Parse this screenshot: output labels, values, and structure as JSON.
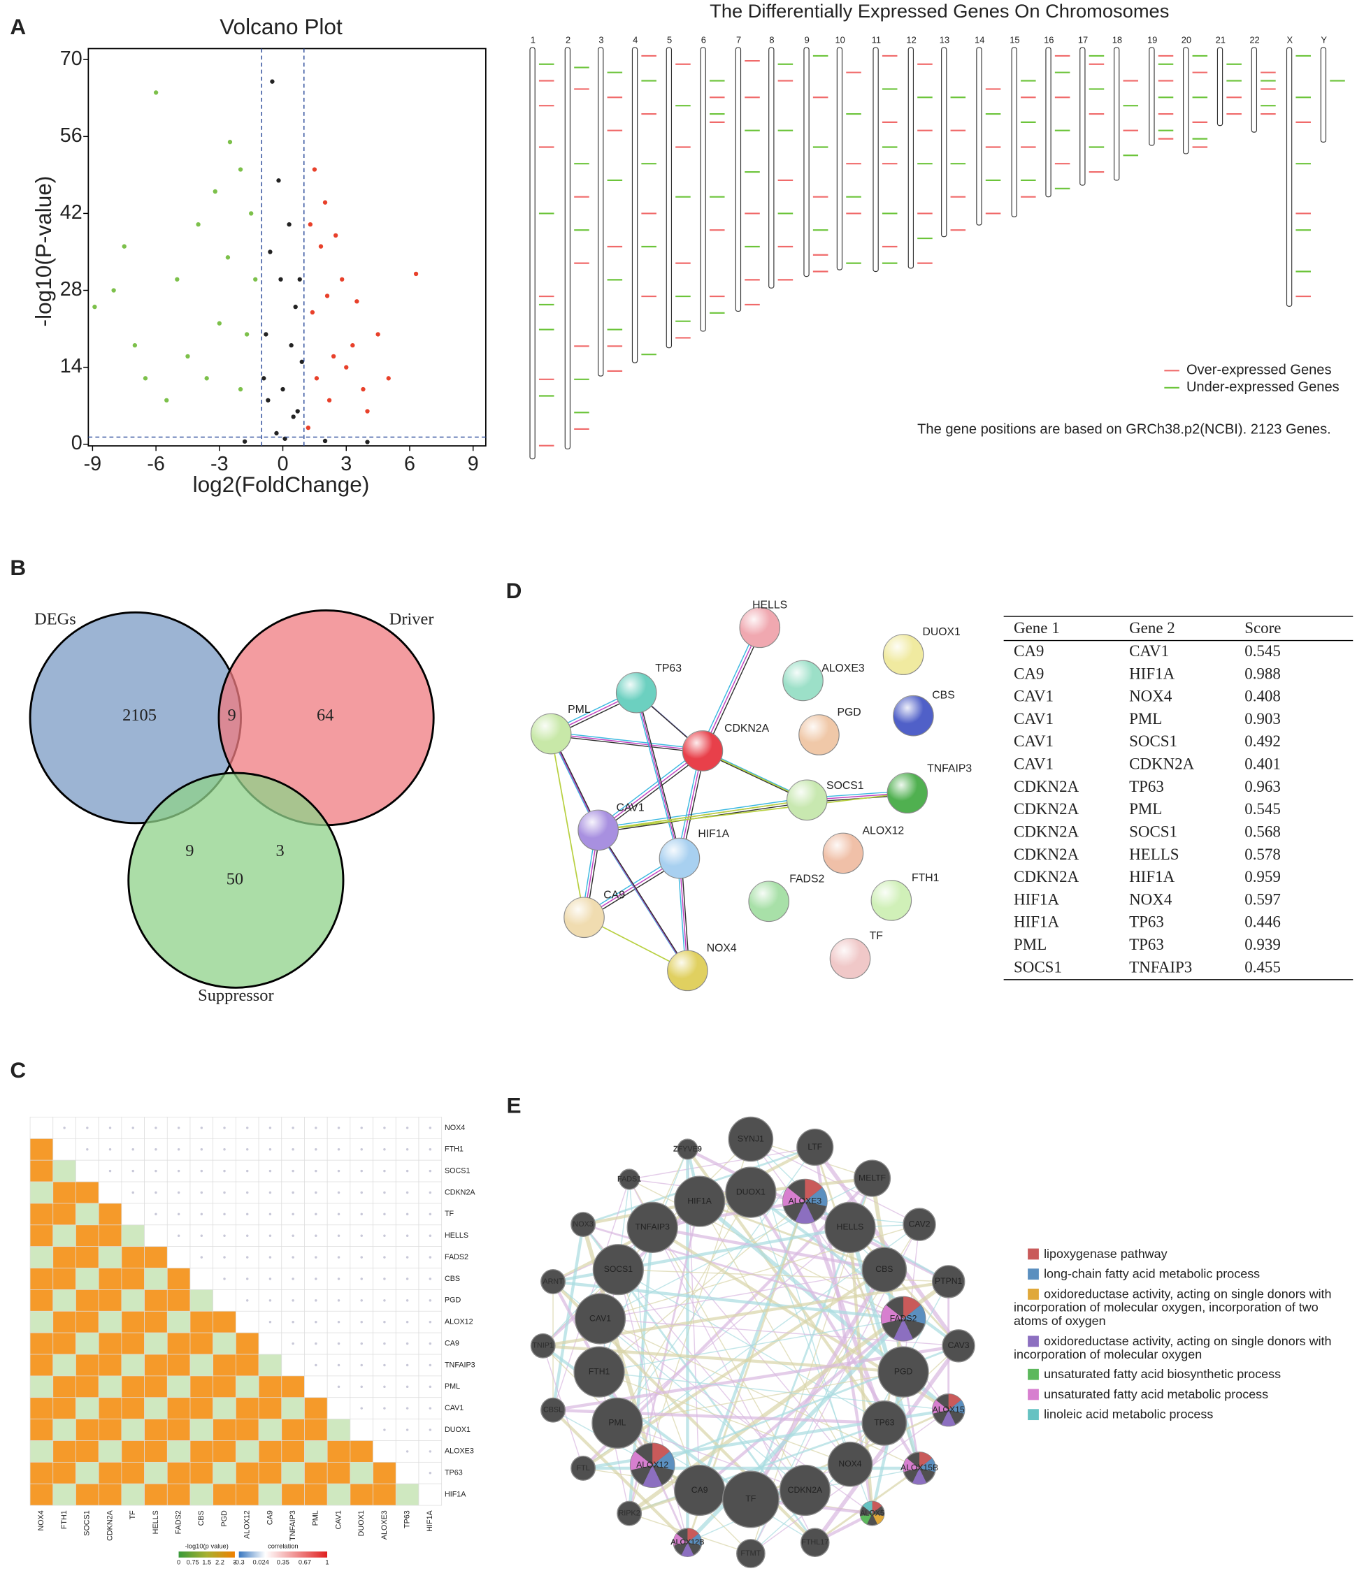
{
  "panel_labels": [
    "A",
    "B",
    "C",
    "D",
    "E"
  ],
  "volcano": {
    "type": "scatter",
    "title": "Volcano Plot",
    "x_label": "log2(FoldChange)",
    "y_label": "-log10(P-value)",
    "xlim": [
      -9.2,
      9.6
    ],
    "ylim": [
      -0.3,
      72
    ],
    "xticks": [
      -9,
      -6,
      -3,
      0,
      3,
      6,
      9
    ],
    "yticks": [
      0,
      14,
      28,
      42,
      56,
      70
    ],
    "x_thresholds": [
      -1,
      1
    ],
    "y_threshold": 1.3,
    "series": [
      {
        "color": "#e8402a",
        "x": [
          6.3,
          4.5,
          3.5,
          2.5,
          2,
          1.5,
          3,
          2.2,
          1.4,
          5,
          2.8,
          1.8,
          4,
          1.2,
          3.3,
          1.6,
          2.4,
          1.3,
          3.8,
          2.1
        ],
        "y": [
          31,
          20,
          26,
          38,
          44,
          50,
          14,
          8,
          24,
          12,
          30,
          36,
          6,
          3,
          18,
          12,
          16,
          40,
          10,
          27
        ]
      },
      {
        "color": "#7cc04a",
        "x": [
          -8,
          -7.5,
          -6,
          -5,
          -4,
          -3.2,
          -2.5,
          -2,
          -1.5,
          -3,
          -4.5,
          -6.5,
          -2,
          -1.3,
          -5.5,
          -8.9,
          -7,
          -2.6,
          -1.7,
          -3.6
        ],
        "y": [
          28,
          36,
          64,
          30,
          40,
          46,
          55,
          50,
          42,
          22,
          16,
          12,
          10,
          30,
          8,
          25,
          18,
          34,
          20,
          12
        ]
      },
      {
        "color": "#222222",
        "x": [
          -0.5,
          -0.2,
          0.3,
          0.8,
          -0.8,
          0,
          0.5,
          -0.3,
          0.6,
          -0.6,
          0.1,
          -1.8,
          2,
          4,
          -0.9,
          0.9,
          -0.1,
          0.4,
          -0.7,
          0.7
        ],
        "y": [
          66,
          48,
          40,
          30,
          20,
          10,
          5,
          2,
          25,
          35,
          1,
          0.5,
          0.6,
          0.4,
          12,
          15,
          30,
          18,
          8,
          6
        ]
      }
    ]
  },
  "chromosomes": {
    "title": "The Differentially Expressed Genes On Chromosomes",
    "legend": [
      "Over-expressed Genes",
      "Under-expressed Genes"
    ],
    "colors": [
      "#f06a6a",
      "#6cc43a"
    ],
    "note": "The gene positions are based on GRCh38.p2(NCBI). 2123 Genes.",
    "items": [
      {
        "name": "1",
        "length": 248,
        "over": [
          20,
          35,
          60,
          150,
          200,
          240
        ],
        "under": [
          10,
          100,
          155,
          170,
          210
        ]
      },
      {
        "name": "2",
        "length": 242,
        "over": [
          25,
          90,
          130,
          180,
          230
        ],
        "under": [
          12,
          70,
          110,
          200,
          220
        ]
      },
      {
        "name": "3",
        "length": 198,
        "over": [
          30,
          50,
          120,
          180,
          195
        ],
        "under": [
          15,
          80,
          140,
          170
        ]
      },
      {
        "name": "4",
        "length": 190,
        "over": [
          5,
          40,
          100,
          150
        ],
        "under": [
          20,
          70,
          120,
          185
        ]
      },
      {
        "name": "5",
        "length": 181,
        "over": [
          10,
          60,
          130,
          175
        ],
        "under": [
          35,
          90,
          150,
          165
        ]
      },
      {
        "name": "6",
        "length": 171,
        "over": [
          30,
          45,
          110,
          150
        ],
        "under": [
          20,
          40,
          90,
          160
        ]
      },
      {
        "name": "7",
        "length": 159,
        "over": [
          8,
          30,
          100,
          140,
          155
        ],
        "under": [
          50,
          75,
          120
        ]
      },
      {
        "name": "8",
        "length": 145,
        "over": [
          20,
          80,
          120,
          140
        ],
        "under": [
          10,
          50,
          100
        ]
      },
      {
        "name": "9",
        "length": 138,
        "over": [
          30,
          90,
          125,
          135
        ],
        "under": [
          5,
          60,
          110
        ]
      },
      {
        "name": "10",
        "length": 134,
        "over": [
          15,
          70,
          100
        ],
        "under": [
          40,
          90,
          130
        ]
      },
      {
        "name": "11",
        "length": 135,
        "over": [
          5,
          45,
          70,
          120
        ],
        "under": [
          25,
          60,
          100,
          130
        ]
      },
      {
        "name": "12",
        "length": 133,
        "over": [
          10,
          50,
          100,
          130
        ],
        "under": [
          30,
          70,
          115
        ]
      },
      {
        "name": "13",
        "length": 114,
        "over": [
          50,
          90,
          110
        ],
        "under": [
          30,
          70
        ]
      },
      {
        "name": "14",
        "length": 107,
        "over": [
          25,
          60,
          100
        ],
        "under": [
          40,
          80
        ]
      },
      {
        "name": "15",
        "length": 102,
        "over": [
          30,
          60,
          90
        ],
        "under": [
          20,
          45,
          80
        ]
      },
      {
        "name": "16",
        "length": 90,
        "over": [
          5,
          30,
          70
        ],
        "under": [
          15,
          50,
          85
        ]
      },
      {
        "name": "17",
        "length": 83,
        "over": [
          10,
          40,
          75
        ],
        "under": [
          5,
          25,
          60
        ]
      },
      {
        "name": "18",
        "length": 80,
        "over": [
          20,
          50
        ],
        "under": [
          35,
          65
        ]
      },
      {
        "name": "19",
        "length": 59,
        "over": [
          5,
          20,
          40,
          55
        ],
        "under": [
          10,
          30,
          50
        ]
      },
      {
        "name": "20",
        "length": 64,
        "over": [
          15,
          45,
          60
        ],
        "under": [
          5,
          30,
          55
        ]
      },
      {
        "name": "21",
        "length": 47,
        "over": [
          30,
          40
        ],
        "under": [
          10,
          20
        ]
      },
      {
        "name": "22",
        "length": 51,
        "over": [
          15,
          25,
          40
        ],
        "under": [
          20,
          35
        ]
      },
      {
        "name": "X",
        "length": 156,
        "over": [
          45,
          100,
          150
        ],
        "under": [
          5,
          30,
          70,
          110,
          135
        ]
      },
      {
        "name": "Y",
        "length": 57,
        "over": [],
        "under": [
          20
        ]
      }
    ]
  },
  "venn": {
    "sets": [
      "DEGs",
      "Driver",
      "Suppressor"
    ],
    "colors": [
      "#7b9bc4",
      "#ef7b80",
      "#8fd18a"
    ],
    "only_degs": 2105,
    "only_driver": 64,
    "only_suppressor": 50,
    "degs_driver": 9,
    "degs_suppressor": 9,
    "driver_suppressor": 3
  },
  "heatmap": {
    "genes": [
      "NOX4",
      "FTH1",
      "SOCS1",
      "CDKN2A",
      "TF",
      "HELLS",
      "FADS2",
      "CBS",
      "PGD",
      "ALOX12",
      "CA9",
      "TNFAIP3",
      "PML",
      "CAV1",
      "DUOX1",
      "ALOXE3",
      "TP63",
      "HIF1A"
    ],
    "pvalue_legend": {
      "label": "-log10(p value)",
      "lim": [
        0,
        3
      ],
      "ticks": [
        0,
        0.75,
        1.5,
        2.2,
        3
      ]
    },
    "correlation_legend": {
      "label": "correlation",
      "lim": [
        -0.3,
        1
      ],
      "ticks": [
        -0.3,
        0.024,
        0.35,
        0.67,
        1
      ]
    }
  },
  "ppi": {
    "nodes": [
      "HELLS",
      "DUOX1",
      "ALOXE3",
      "TP63",
      "PML",
      "CDKN2A",
      "PGD",
      "CBS",
      "SOCS1",
      "TNFAIP3",
      "CAV1",
      "HIF1A",
      "ALOX12",
      "FADS2",
      "FTH1",
      "CA9",
      "TF",
      "NOX4"
    ],
    "table": {
      "header": [
        "Gene 1",
        "Gene 2",
        "Score"
      ],
      "rows": [
        [
          "CA9",
          "CAV1",
          0.545
        ],
        [
          "CA9",
          "HIF1A",
          0.988
        ],
        [
          "CAV1",
          "NOX4",
          0.408
        ],
        [
          "CAV1",
          "PML",
          0.903
        ],
        [
          "CAV1",
          "SOCS1",
          0.492
        ],
        [
          "CAV1",
          "CDKN2A",
          0.401
        ],
        [
          "CDKN2A",
          "TP63",
          0.963
        ],
        [
          "CDKN2A",
          "PML",
          0.545
        ],
        [
          "CDKN2A",
          "SOCS1",
          0.568
        ],
        [
          "CDKN2A",
          "HELLS",
          0.578
        ],
        [
          "CDKN2A",
          "HIF1A",
          0.959
        ],
        [
          "HIF1A",
          "NOX4",
          0.597
        ],
        [
          "HIF1A",
          "TP63",
          0.446
        ],
        [
          "PML",
          "TP63",
          0.939
        ],
        [
          "SOCS1",
          "TNFAIP3",
          0.455
        ]
      ]
    }
  },
  "genemania": {
    "nodes": [
      "SYNJ1",
      "LTF",
      "ZFYVE9",
      "MELTF",
      "FADS1",
      "HIF1A",
      "DUOX1",
      "ALOXE3",
      "CAV2",
      "NOX3",
      "TNFAIP3",
      "HELLS",
      "SOCS1",
      "CBS",
      "ARNT",
      "PTPN1",
      "CAV1",
      "FADS2",
      "TNIP1",
      "CAV3",
      "FTH1",
      "PGD",
      "CBSL",
      "ALOX15",
      "PML",
      "TP63",
      "FTL",
      "ALOX12",
      "NOX4",
      "ALOX15B",
      "CA9",
      "TF",
      "CDKN2A",
      "RIPK2",
      "ALOX5",
      "ALOX12B",
      "FTMT",
      "FTHL17"
    ],
    "legend": [
      {
        "color": "#c95a5a",
        "label": [
          "lipoxygenase pathway"
        ]
      },
      {
        "color": "#5b8fbf",
        "label": [
          "long-chain fatty acid metabolic process"
        ]
      },
      {
        "color": "#e0a83a",
        "label": [
          "oxidoreductase activity, acting on single donors with",
          "incorporation of molecular oxygen, incorporation of two",
          "atoms of oxygen"
        ]
      },
      {
        "color": "#8c6fc0",
        "label": [
          "oxidoreductase activity, acting on single donors with",
          "incorporation of molecular oxygen"
        ]
      },
      {
        "color": "#5cb85c",
        "label": [
          "unsaturated fatty acid biosynthetic process"
        ]
      },
      {
        "color": "#d77fcf",
        "label": [
          "unsaturated fatty acid metabolic process"
        ]
      },
      {
        "color": "#66c2c2",
        "label": [
          "linoleic acid metabolic process"
        ]
      }
    ]
  }
}
